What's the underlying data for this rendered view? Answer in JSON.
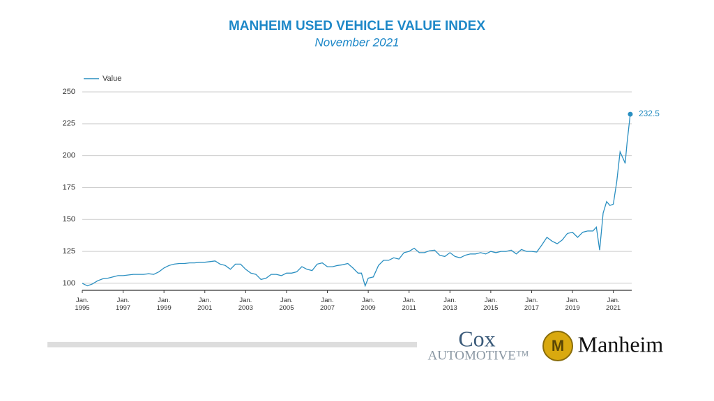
{
  "chart_data": {
    "type": "line",
    "title": "MANHEIM USED VEHICLE VALUE INDEX",
    "subtitle": "November 2021",
    "x": [
      1995.0,
      1995.25,
      1995.5,
      1995.75,
      1996.0,
      1996.25,
      1996.5,
      1996.75,
      1997.0,
      1997.25,
      1997.5,
      1997.75,
      1998.0,
      1998.25,
      1998.5,
      1998.75,
      1999.0,
      1999.25,
      1999.5,
      1999.75,
      2000.0,
      2000.25,
      2000.5,
      2000.75,
      2001.0,
      2001.25,
      2001.5,
      2001.75,
      2002.0,
      2002.25,
      2002.5,
      2002.75,
      2003.0,
      2003.25,
      2003.5,
      2003.75,
      2004.0,
      2004.25,
      2004.5,
      2004.75,
      2005.0,
      2005.25,
      2005.5,
      2005.75,
      2006.0,
      2006.25,
      2006.5,
      2006.75,
      2007.0,
      2007.25,
      2007.5,
      2007.75,
      2008.0,
      2008.25,
      2008.5,
      2008.67,
      2008.85,
      2009.0,
      2009.25,
      2009.5,
      2009.75,
      2010.0,
      2010.25,
      2010.5,
      2010.75,
      2011.0,
      2011.25,
      2011.5,
      2011.75,
      2012.0,
      2012.25,
      2012.5,
      2012.75,
      2013.0,
      2013.25,
      2013.5,
      2013.75,
      2014.0,
      2014.25,
      2014.5,
      2014.75,
      2015.0,
      2015.25,
      2015.5,
      2015.75,
      2016.0,
      2016.25,
      2016.5,
      2016.75,
      2017.0,
      2017.25,
      2017.5,
      2017.75,
      2018.0,
      2018.25,
      2018.5,
      2018.75,
      2019.0,
      2019.25,
      2019.5,
      2019.75,
      2020.0,
      2020.17,
      2020.33,
      2020.5,
      2020.67,
      2020.83,
      2021.0,
      2021.17,
      2021.33,
      2021.5,
      2021.58,
      2021.67,
      2021.83
    ],
    "series": [
      {
        "name": "Value",
        "color": "#2a8fc1",
        "values": [
          100,
          98,
          99.5,
          102,
          103.5,
          104,
          105,
          106,
          106,
          106.5,
          107,
          107,
          107,
          107.5,
          107,
          109,
          112,
          114,
          115,
          115.5,
          115.5,
          116,
          116,
          116.5,
          116.5,
          117,
          117.5,
          115,
          114,
          111,
          115,
          115,
          111,
          108,
          107,
          103,
          104,
          107,
          107,
          106,
          108,
          108,
          109,
          113,
          111,
          110,
          115,
          116,
          113,
          113,
          114,
          114.5,
          115.5,
          112,
          108,
          108,
          98,
          104,
          105,
          114,
          118,
          118,
          120,
          119,
          124,
          125,
          127.5,
          124,
          124,
          125.5,
          126,
          122,
          121,
          124,
          121,
          120,
          122,
          123,
          123,
          124,
          123,
          125,
          124,
          125,
          125,
          126,
          123,
          126.5,
          125,
          125,
          124.5,
          130,
          136,
          133,
          131,
          134,
          139,
          140,
          136,
          140,
          141,
          141,
          144,
          126,
          155,
          164,
          161,
          162,
          180,
          203,
          197,
          194,
          210,
          232.5
        ]
      }
    ],
    "xlim": [
      1995,
      2021.9
    ],
    "xticks": [
      {
        "value": 1995,
        "label": "Jan. 1995"
      },
      {
        "value": 1997,
        "label": "Jan. 1997"
      },
      {
        "value": 1999,
        "label": "Jan. 1999"
      },
      {
        "value": 2001,
        "label": "Jan. 2001"
      },
      {
        "value": 2003,
        "label": "Jan. 2003"
      },
      {
        "value": 2005,
        "label": "Jan. 2005"
      },
      {
        "value": 2007,
        "label": "Jan. 2007"
      },
      {
        "value": 2009,
        "label": "Jan. 2009"
      },
      {
        "value": 2011,
        "label": "Jan. 2011"
      },
      {
        "value": 2013,
        "label": "Jan. 2013"
      },
      {
        "value": 2015,
        "label": "Jan. 2015"
      },
      {
        "value": 2017,
        "label": "Jan. 2017"
      },
      {
        "value": 2019,
        "label": "Jan. 2019"
      },
      {
        "value": 2021,
        "label": "Jan. 2021"
      }
    ],
    "ylim": [
      94.5,
      250
    ],
    "yticks": [
      100,
      125,
      150,
      175,
      200,
      225,
      250
    ],
    "grid": true,
    "legend": "top-left"
  },
  "footer": {
    "cox": "Cox",
    "automotive": "AUTOMOTIVE™",
    "manheim": "Manheim"
  }
}
